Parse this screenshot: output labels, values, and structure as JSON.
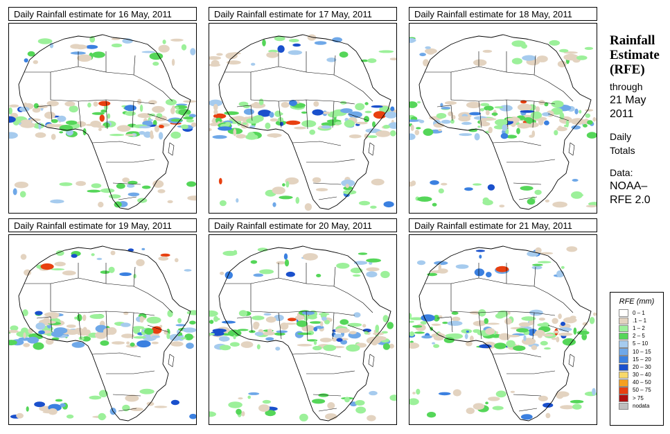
{
  "panels": [
    {
      "title": "Daily Rainfall estimate for  16 May, 2011"
    },
    {
      "title": "Daily Rainfall estimate for  17 May, 2011"
    },
    {
      "title": "Daily Rainfall estimate for  18 May, 2011"
    },
    {
      "title": "Daily Rainfall estimate for  19 May, 2011"
    },
    {
      "title": "Daily Rainfall estimate for  20 May, 2011"
    },
    {
      "title": "Daily Rainfall estimate for  21 May, 2011"
    }
  ],
  "side": {
    "title_line1": "Rainfall",
    "title_line2": "Estimate",
    "title_line3": "(RFE)",
    "through": "through",
    "date_line1": "21 May",
    "date_line2": "2011",
    "daily": "Daily",
    "totals": "Totals",
    "data_label": "Data:",
    "source_line1": "NOAA–",
    "source_line2": "RFE 2.0"
  },
  "legend": {
    "title": "RFE (mm)",
    "items": [
      {
        "label": "0 – 1",
        "color": "#ffffff"
      },
      {
        "label": ".1 – 1",
        "color": "#e3d3c0"
      },
      {
        "label": "1 – 2",
        "color": "#9cf09a"
      },
      {
        "label": "2 – 5",
        "color": "#55d659"
      },
      {
        "label": "5 – 10",
        "color": "#a6cbee"
      },
      {
        "label": "10 – 15",
        "color": "#6fa8e8"
      },
      {
        "label": "15 – 20",
        "color": "#3b80e0"
      },
      {
        "label": "20 – 30",
        "color": "#1a50cc"
      },
      {
        "label": "30 – 40",
        "color": "#f7d86a"
      },
      {
        "label": "40 – 50",
        "color": "#f5a020"
      },
      {
        "label": "50 – 75",
        "color": "#e84010"
      },
      {
        "label": "> 75",
        "color": "#b01010"
      },
      {
        "label": "nodata",
        "color": "#bebebe"
      }
    ]
  }
}
